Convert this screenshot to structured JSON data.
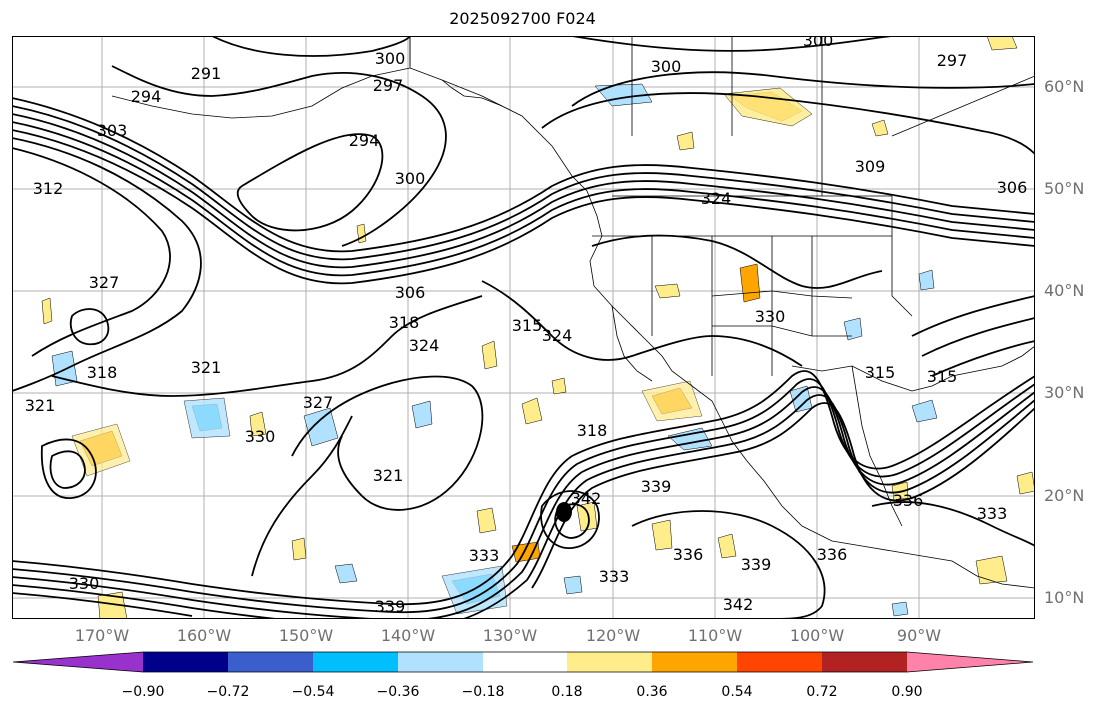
{
  "title": "2025092700 F024",
  "latitude_labels": [
    "60°N",
    "50°N",
    "40°N",
    "30°N",
    "20°N",
    "10°N"
  ],
  "longitude_labels": [
    "170°W",
    "160°W",
    "150°W",
    "140°W",
    "130°W",
    "120°W",
    "110°W",
    "100°W",
    "90°W"
  ],
  "contour_labels": [
    "291",
    "294",
    "297",
    "300",
    "300",
    "300",
    "297",
    "294",
    "300",
    "303",
    "306",
    "306",
    "309",
    "312",
    "315",
    "315",
    "315",
    "318",
    "318",
    "318",
    "321",
    "321",
    "321",
    "324",
    "324",
    "324",
    "327",
    "327",
    "330",
    "330",
    "330",
    "333",
    "333",
    "333",
    "336",
    "336",
    "336",
    "339",
    "339",
    "339",
    "342",
    "342"
  ],
  "colorbar": {
    "tick_labels": [
      "−0.90",
      "−0.72",
      "−0.54",
      "−0.36",
      "−0.18",
      "0.18",
      "0.36",
      "0.54",
      "0.72",
      "0.90"
    ],
    "colors": [
      "#9932cc",
      "#00008b",
      "#3a5fcd",
      "#00bfff",
      "#b0e2ff",
      "#ffffff",
      "#ffec8b",
      "#ffa500",
      "#ff4500",
      "#b22222",
      "#ff82ab"
    ]
  },
  "colors": {
    "contour": "#000000",
    "grid": "#b0b0b0",
    "axis_label": "#707070"
  }
}
